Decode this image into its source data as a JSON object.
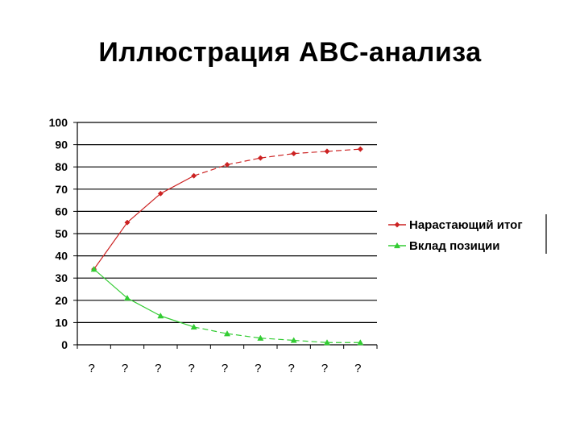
{
  "page": {
    "title": "Иллюстрация ABC-анализа"
  },
  "chart_data": {
    "type": "line",
    "title": "",
    "xlabel": "",
    "ylabel": "",
    "ylim": [
      0,
      100
    ],
    "yticks": [
      0,
      10,
      20,
      30,
      40,
      50,
      60,
      70,
      80,
      90,
      100
    ],
    "grid": true,
    "legend_position": "right",
    "categories": [
      "?",
      "?",
      "?",
      "?",
      "?",
      "?",
      "?",
      "?",
      "?"
    ],
    "series": [
      {
        "name": "Нарастающий итог",
        "color": "#cc2222",
        "marker": "diamond",
        "values": [
          34,
          55,
          68,
          76,
          81,
          84,
          86,
          87,
          88
        ]
      },
      {
        "name": "Вклад позиции",
        "color": "#33cc33",
        "marker": "triangle",
        "values": [
          34,
          21,
          13,
          8,
          5,
          3,
          2,
          1,
          1
        ]
      }
    ]
  }
}
